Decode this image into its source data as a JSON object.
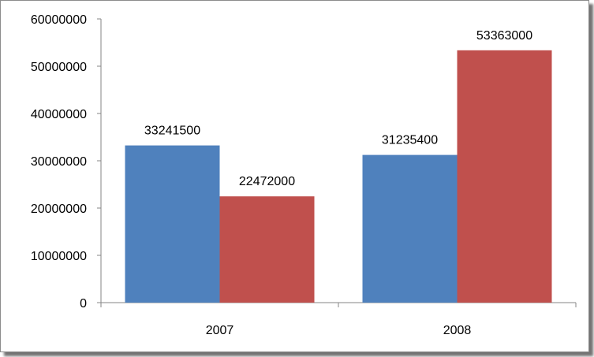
{
  "chart_data": {
    "type": "bar",
    "title": "",
    "xlabel": "",
    "ylabel": "",
    "categories": [
      "2007",
      "2008"
    ],
    "series": [
      {
        "color": "#4f81bd",
        "values": [
          33241500,
          31235400
        ]
      },
      {
        "color": "#c0504d",
        "values": [
          22472000,
          53363000
        ]
      }
    ],
    "data_labels": [
      [
        "33241500",
        "31235400"
      ],
      [
        "22472000",
        "53363000"
      ]
    ],
    "ylim": [
      0,
      60000000
    ],
    "y_ticks": [
      0,
      10000000,
      20000000,
      30000000,
      40000000,
      50000000,
      60000000
    ],
    "y_tick_labels": [
      "0",
      "10000000",
      "20000000",
      "30000000",
      "40000000",
      "50000000",
      "60000000"
    ],
    "grid": false,
    "legend": "none"
  }
}
